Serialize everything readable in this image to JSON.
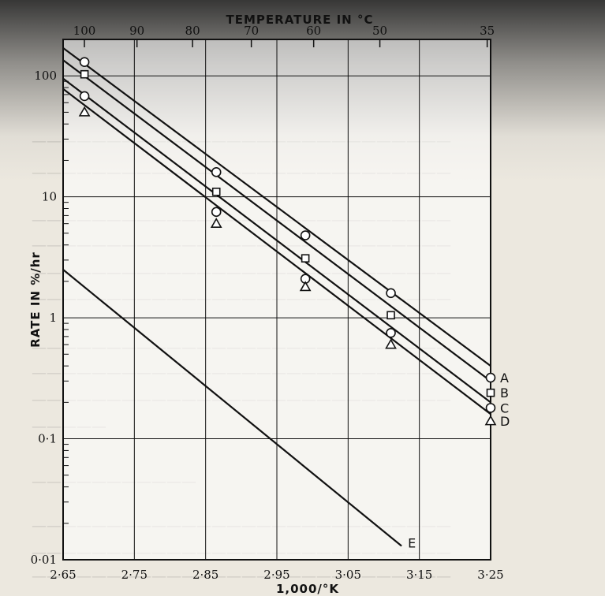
{
  "chart_data": {
    "type": "line",
    "title": "",
    "xlabel": "1,000/°K",
    "ylabel": "RATE IN %/hr",
    "x2label": "TEMPERATURE IN °C",
    "xlim": [
      2.65,
      3.25
    ],
    "ylim": [
      0.01,
      200
    ],
    "yscale": "log",
    "grid": true,
    "xticks": [
      {
        "label": "2·65",
        "value": 2.65
      },
      {
        "label": "2·75",
        "value": 2.75
      },
      {
        "label": "2·85",
        "value": 2.85
      },
      {
        "label": "2·95",
        "value": 2.95
      },
      {
        "label": "3·05",
        "value": 3.05
      },
      {
        "label": "3·15",
        "value": 3.15
      },
      {
        "label": "3·25",
        "value": 3.25
      }
    ],
    "yticks": [
      {
        "label": "0·01",
        "value": 0.01
      },
      {
        "label": "0·1",
        "value": 0.1
      },
      {
        "label": "1",
        "value": 1
      },
      {
        "label": "10",
        "value": 10
      },
      {
        "label": "100",
        "value": 100
      }
    ],
    "x2ticks": [
      {
        "label": "100",
        "value": 100
      },
      {
        "label": "90",
        "value": 90
      },
      {
        "label": "80",
        "value": 80
      },
      {
        "label": "70",
        "value": 70
      },
      {
        "label": "60",
        "value": 60
      },
      {
        "label": "50",
        "value": 50
      },
      {
        "label": "35",
        "value": 35
      }
    ],
    "series": [
      {
        "name": "A",
        "marker": "circle",
        "line": [
          [
            2.65,
            170
          ],
          [
            3.25,
            0.4
          ]
        ],
        "points": [
          [
            2.68,
            130
          ],
          [
            2.865,
            16
          ],
          [
            2.99,
            4.8
          ],
          [
            3.11,
            1.6
          ],
          [
            3.25,
            0.32
          ]
        ]
      },
      {
        "name": "B",
        "marker": "square",
        "line": [
          [
            2.65,
            135
          ],
          [
            3.25,
            0.3
          ]
        ],
        "points": [
          [
            2.68,
            103
          ],
          [
            2.865,
            11
          ],
          [
            2.99,
            3.1
          ],
          [
            3.11,
            1.05
          ],
          [
            3.25,
            0.24
          ]
        ]
      },
      {
        "name": "C",
        "marker": "circle",
        "line": [
          [
            2.65,
            95
          ],
          [
            3.25,
            0.2
          ]
        ],
        "points": [
          [
            2.68,
            68
          ],
          [
            2.865,
            7.5
          ],
          [
            2.99,
            2.1
          ],
          [
            3.11,
            0.75
          ],
          [
            3.25,
            0.18
          ]
        ]
      },
      {
        "name": "D",
        "marker": "triangle",
        "line": [
          [
            2.65,
            78
          ],
          [
            3.25,
            0.16
          ]
        ],
        "points": [
          [
            2.68,
            50
          ],
          [
            2.865,
            6
          ],
          [
            2.99,
            1.8
          ],
          [
            3.11,
            0.6
          ],
          [
            3.25,
            0.14
          ]
        ]
      },
      {
        "name": "E",
        "marker": "none",
        "line": [
          [
            2.65,
            2.5
          ],
          [
            3.125,
            0.013
          ]
        ],
        "points": []
      }
    ]
  },
  "colors": {
    "ink": "#111111",
    "paper": "#ffffff"
  }
}
